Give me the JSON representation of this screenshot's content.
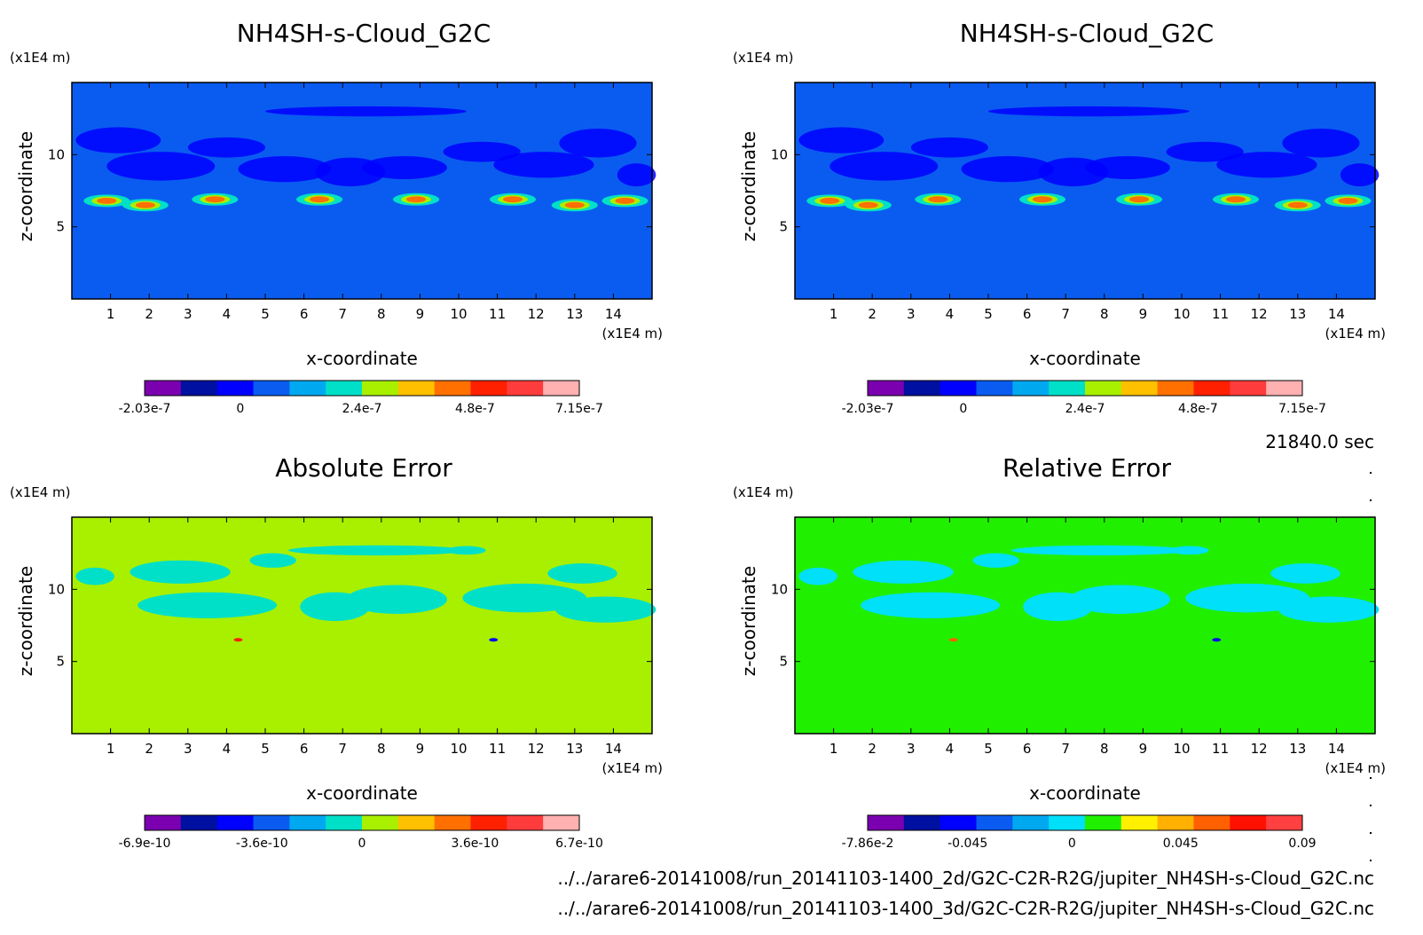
{
  "time_label": "21840.0 sec",
  "files": [
    "../../arare6-20141008/run_20141103-1400_2d/G2C-C2R-R2G/jupiter_NH4SH-s-Cloud_G2C.nc",
    "../../arare6-20141008/run_20141103-1400_3d/G2C-C2R-R2G/jupiter_NH4SH-s-Cloud_G2C.nc"
  ],
  "chart_data": [
    {
      "type": "heatmap",
      "title": "NH4SH-s-Cloud_G2C",
      "xlabel": "x-coordinate",
      "ylabel": "z-coordinate",
      "x_unit": "(x1E4 m)",
      "y_unit": "(x1E4 m)",
      "x_ticks": [
        1,
        2,
        3,
        4,
        5,
        6,
        7,
        8,
        9,
        10,
        11,
        12,
        13,
        14
      ],
      "y_ticks": [
        5,
        10
      ],
      "xlim": [
        0,
        15
      ],
      "ylim": [
        0,
        15
      ],
      "background_level": 0,
      "colorbar": {
        "colors": [
          "#7a00b0",
          "#0010a0",
          "#0000ff",
          "#0a5cf0",
          "#00a8f0",
          "#00e0c8",
          "#a8f000",
          "#ffc000",
          "#ff7000",
          "#ff2000",
          "#ff3c3c",
          "#ffb0b0"
        ],
        "labels": [
          "-2.03e-7",
          "0",
          "2.4e-7",
          "4.8e-7",
          "7.15e-7"
        ]
      },
      "hotspots": [
        {
          "x": 0.9,
          "z": 6.8,
          "level": 8
        },
        {
          "x": 1.9,
          "z": 6.5,
          "level": 8
        },
        {
          "x": 3.7,
          "z": 6.9,
          "level": 8
        },
        {
          "x": 6.4,
          "z": 6.9,
          "level": 8
        },
        {
          "x": 8.9,
          "z": 6.9,
          "level": 8
        },
        {
          "x": 11.4,
          "z": 6.9,
          "level": 8
        },
        {
          "x": 13.0,
          "z": 6.5,
          "level": 8
        },
        {
          "x": 14.3,
          "z": 6.8,
          "level": 8
        }
      ]
    },
    {
      "type": "heatmap",
      "title": "NH4SH-s-Cloud_G2C",
      "xlabel": "x-coordinate",
      "ylabel": "z-coordinate",
      "x_unit": "(x1E4 m)",
      "y_unit": "(x1E4 m)",
      "x_ticks": [
        1,
        2,
        3,
        4,
        5,
        6,
        7,
        8,
        9,
        10,
        11,
        12,
        13,
        14
      ],
      "y_ticks": [
        5,
        10
      ],
      "xlim": [
        0,
        15
      ],
      "ylim": [
        0,
        15
      ],
      "background_level": 0,
      "colorbar": {
        "colors": [
          "#7a00b0",
          "#0010a0",
          "#0000ff",
          "#0a5cf0",
          "#00a8f0",
          "#00e0c8",
          "#a8f000",
          "#ffc000",
          "#ff7000",
          "#ff2000",
          "#ff3c3c",
          "#ffb0b0"
        ],
        "labels": [
          "-2.03e-7",
          "0",
          "2.4e-7",
          "4.8e-7",
          "7.15e-7"
        ]
      },
      "hotspots": [
        {
          "x": 0.9,
          "z": 6.8,
          "level": 8
        },
        {
          "x": 1.9,
          "z": 6.5,
          "level": 8
        },
        {
          "x": 3.7,
          "z": 6.9,
          "level": 8
        },
        {
          "x": 6.4,
          "z": 6.9,
          "level": 8
        },
        {
          "x": 8.9,
          "z": 6.9,
          "level": 8
        },
        {
          "x": 11.4,
          "z": 6.9,
          "level": 8
        },
        {
          "x": 13.0,
          "z": 6.5,
          "level": 8
        },
        {
          "x": 14.3,
          "z": 6.8,
          "level": 8
        }
      ]
    },
    {
      "type": "heatmap",
      "title": "Absolute Error",
      "xlabel": "x-coordinate",
      "ylabel": "z-coordinate",
      "x_unit": "(x1E4 m)",
      "y_unit": "(x1E4 m)",
      "x_ticks": [
        1,
        2,
        3,
        4,
        5,
        6,
        7,
        8,
        9,
        10,
        11,
        12,
        13,
        14
      ],
      "y_ticks": [
        5,
        10
      ],
      "xlim": [
        0,
        15
      ],
      "ylim": [
        0,
        15
      ],
      "background_level": 0,
      "colorbar": {
        "colors": [
          "#7a00b0",
          "#0010a0",
          "#0000ff",
          "#0a5cf0",
          "#00a8f0",
          "#00e0c8",
          "#a8f000",
          "#ffc000",
          "#ff7000",
          "#ff2000",
          "#ff3c3c",
          "#ffb0b0"
        ],
        "labels": [
          "-6.9e-10",
          "-3.6e-10",
          "0",
          "3.6e-10",
          "6.7e-10"
        ]
      },
      "hotspots": [
        {
          "x": 4.3,
          "z": 6.5,
          "level": 9
        },
        {
          "x": 10.9,
          "z": 6.5,
          "level": 2
        }
      ]
    },
    {
      "type": "heatmap",
      "title": "Relative Error",
      "xlabel": "x-coordinate",
      "ylabel": "z-coordinate",
      "x_unit": "(x1E4 m)",
      "y_unit": "(x1E4 m)",
      "x_ticks": [
        1,
        2,
        3,
        4,
        5,
        6,
        7,
        8,
        9,
        10,
        11,
        12,
        13,
        14
      ],
      "y_ticks": [
        5,
        10
      ],
      "xlim": [
        0,
        15
      ],
      "ylim": [
        0,
        15
      ],
      "background_level": 0,
      "colorbar": {
        "colors": [
          "#7a00b0",
          "#0010a0",
          "#0000ff",
          "#0a5cf0",
          "#00a8f0",
          "#00e0f8",
          "#20f000",
          "#fff000",
          "#ffb000",
          "#ff6000",
          "#ff1000",
          "#ff4040"
        ],
        "labels": [
          "-7.86e-2",
          "-0.045",
          "0",
          "0.045",
          "0.09"
        ]
      },
      "hotspots": [
        {
          "x": 4.1,
          "z": 6.5,
          "level": 9
        },
        {
          "x": 10.9,
          "z": 6.5,
          "level": 2
        }
      ]
    }
  ]
}
